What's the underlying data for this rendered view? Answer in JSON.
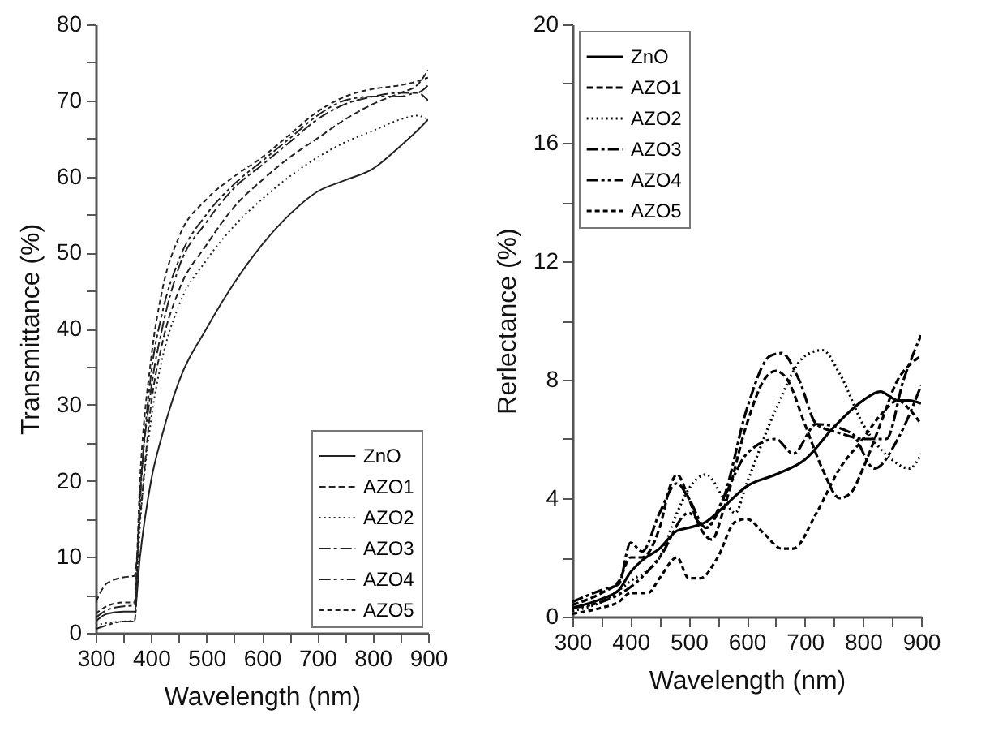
{
  "chart_data": [
    {
      "type": "line",
      "xlabel": "Wavelength (nm)",
      "ylabel": "Transmittance (%)",
      "xlim": [
        300,
        900
      ],
      "ylim": [
        0,
        80
      ],
      "xticks": [
        300,
        {
          "value": 350,
          "label": null
        },
        400,
        {
          "value": 450,
          "label": null
        },
        500,
        {
          "value": 550,
          "label": null
        },
        600,
        {
          "value": 650,
          "label": null
        },
        700,
        {
          "value": 750,
          "label": null
        },
        800,
        {
          "value": 850,
          "label": null
        },
        900
      ],
      "yticks": [
        0,
        {
          "value": 5,
          "label": null
        },
        10,
        {
          "value": 15,
          "label": null
        },
        20,
        {
          "value": 25,
          "label": null
        },
        30,
        {
          "value": 35,
          "label": null
        },
        40,
        {
          "value": 45,
          "label": null
        },
        50,
        {
          "value": 55,
          "label": null
        },
        60,
        {
          "value": 65,
          "label": null
        },
        70,
        {
          "value": 75,
          "label": null
        },
        80
      ],
      "legend": "bottom right",
      "grid": false,
      "x": [
        300,
        320,
        350,
        370,
        380,
        400,
        420,
        450,
        500,
        550,
        600,
        650,
        700,
        750,
        800,
        850,
        880,
        900
      ],
      "series": [
        {
          "name": "ZnO",
          "color": "#222222",
          "line_style": "solid",
          "values": [
            1.5,
            2.5,
            2.8,
            2.8,
            10,
            20,
            26,
            33,
            40,
            46,
            51,
            55,
            58,
            59.5,
            61,
            64,
            66,
            67.5
          ]
        },
        {
          "name": "AZO1",
          "color": "#222222",
          "line_style": "dashed",
          "values": [
            4,
            6.5,
            7.3,
            7.5,
            15,
            30,
            38,
            45,
            51,
            56,
            59.5,
            62.5,
            65,
            67.5,
            69.5,
            71,
            72,
            74
          ]
        },
        {
          "name": "AZO2",
          "color": "#222222",
          "line_style": "dotted",
          "values": [
            1,
            1.3,
            1.5,
            1.6,
            14,
            28,
            36,
            43,
            49,
            53.5,
            57,
            60,
            62.5,
            64.5,
            66,
            67.5,
            68,
            67.5
          ]
        },
        {
          "name": "AZO3",
          "color": "#222222",
          "line_style": "dashed",
          "values": [
            2,
            3,
            3.5,
            3.6,
            18,
            32,
            40,
            48,
            54,
            58.5,
            61.5,
            64.5,
            67.5,
            69.5,
            70.5,
            71,
            71,
            72
          ]
        },
        {
          "name": "AZO4",
          "color": "#222222",
          "line_style": "dashed",
          "values": [
            0.5,
            1,
            1.5,
            1.5,
            17,
            34,
            42,
            49,
            55,
            59,
            62,
            65,
            68,
            70,
            70.5,
            70.5,
            71,
            70
          ]
        },
        {
          "name": "AZO5",
          "color": "#222222",
          "line_style": "dashed",
          "values": [
            2.5,
            3.5,
            4,
            4,
            20,
            36,
            45,
            52,
            57,
            60,
            62.5,
            65.5,
            68.5,
            70.5,
            71.5,
            72,
            72.5,
            73
          ]
        }
      ]
    },
    {
      "type": "line",
      "xlabel": "Wavelength (nm)",
      "ylabel": "Rerlectance (%)",
      "xlim": [
        300,
        900
      ],
      "ylim": [
        0,
        20
      ],
      "xticks": [
        300,
        {
          "value": 350,
          "label": null
        },
        400,
        {
          "value": 450,
          "label": null
        },
        500,
        {
          "value": 550,
          "label": null
        },
        600,
        {
          "value": 650,
          "label": null
        },
        700,
        {
          "value": 750,
          "label": null
        },
        800,
        {
          "value": 850,
          "label": null
        },
        900
      ],
      "yticks": [
        0,
        {
          "value": 2,
          "label": null
        },
        4,
        {
          "value": 6,
          "label": null
        },
        8,
        {
          "value": 10,
          "label": null
        },
        12,
        {
          "value": 14,
          "label": null
        },
        16,
        {
          "value": 18,
          "label": null
        },
        20
      ],
      "legend": "top left",
      "grid": false,
      "series": [
        {
          "name": "ZnO",
          "color": "#000000",
          "line_style": "solid",
          "x": [
            300,
            350,
            380,
            400,
            420,
            450,
            480,
            500,
            530,
            560,
            600,
            650,
            700,
            750,
            800,
            830,
            860,
            880,
            900
          ],
          "values": [
            0.3,
            0.6,
            0.9,
            1.5,
            1.9,
            2.3,
            2.9,
            3.0,
            3.2,
            3.7,
            4.4,
            4.8,
            5.3,
            6.4,
            7.3,
            7.6,
            7.3,
            7.3,
            7.2
          ]
        },
        {
          "name": "AZO1",
          "color": "#000000",
          "line_style": "dashed",
          "x": [
            300,
            350,
            380,
            400,
            420,
            450,
            470,
            480,
            500,
            520,
            540,
            560,
            600,
            630,
            650,
            670,
            700,
            730,
            760,
            780,
            800,
            830,
            860,
            880,
            900
          ],
          "values": [
            0.4,
            0.8,
            1.2,
            2.0,
            2.0,
            3.0,
            4.5,
            4.8,
            4.0,
            3.0,
            2.6,
            3.6,
            6.5,
            8.0,
            8.3,
            8.0,
            6.5,
            5.0,
            4.0,
            4.2,
            5.0,
            6.5,
            8.0,
            8.5,
            8.8
          ]
        },
        {
          "name": "AZO2",
          "color": "#000000",
          "line_style": "dotted",
          "x": [
            300,
            350,
            400,
            450,
            480,
            500,
            530,
            560,
            580,
            600,
            650,
            700,
            730,
            760,
            800,
            850,
            880,
            900
          ],
          "values": [
            0.2,
            0.5,
            1.2,
            2.0,
            3.5,
            4.3,
            4.8,
            4.0,
            3.5,
            4.5,
            7.0,
            8.8,
            9.0,
            8.2,
            6.5,
            5.3,
            5.0,
            5.5
          ]
        },
        {
          "name": "AZO3",
          "color": "#000000",
          "line_style": "dashed",
          "x": [
            300,
            350,
            380,
            400,
            420,
            450,
            480,
            500,
            530,
            560,
            600,
            640,
            660,
            690,
            720,
            760,
            800,
            840,
            870,
            900
          ],
          "values": [
            0.5,
            0.9,
            1.1,
            2.5,
            2.2,
            3.5,
            4.5,
            4.0,
            3.0,
            4.0,
            7.0,
            8.8,
            8.9,
            8.0,
            6.5,
            6.2,
            6.0,
            6.0,
            8.0,
            9.5
          ]
        },
        {
          "name": "AZO4",
          "color": "#000000",
          "line_style": "dashed",
          "x": [
            300,
            350,
            400,
            450,
            500,
            530,
            560,
            600,
            650,
            680,
            720,
            780,
            820,
            860,
            900
          ],
          "values": [
            0.3,
            0.5,
            1.0,
            2.0,
            3.5,
            3.0,
            4.0,
            5.5,
            6.0,
            5.5,
            6.5,
            6.2,
            5.0,
            6.0,
            7.8
          ]
        },
        {
          "name": "AZO5",
          "color": "#000000",
          "line_style": "dashed",
          "x": [
            300,
            350,
            380,
            400,
            430,
            450,
            480,
            500,
            520,
            550,
            580,
            600,
            630,
            660,
            680,
            720,
            760,
            800,
            830,
            860,
            880,
            900
          ],
          "values": [
            0.1,
            0.3,
            0.5,
            0.8,
            0.8,
            1.3,
            2.0,
            1.3,
            1.3,
            2.0,
            3.2,
            3.3,
            2.8,
            2.3,
            2.3,
            3.5,
            5.0,
            6.0,
            6.8,
            7.3,
            7.0,
            6.5
          ]
        }
      ]
    }
  ]
}
